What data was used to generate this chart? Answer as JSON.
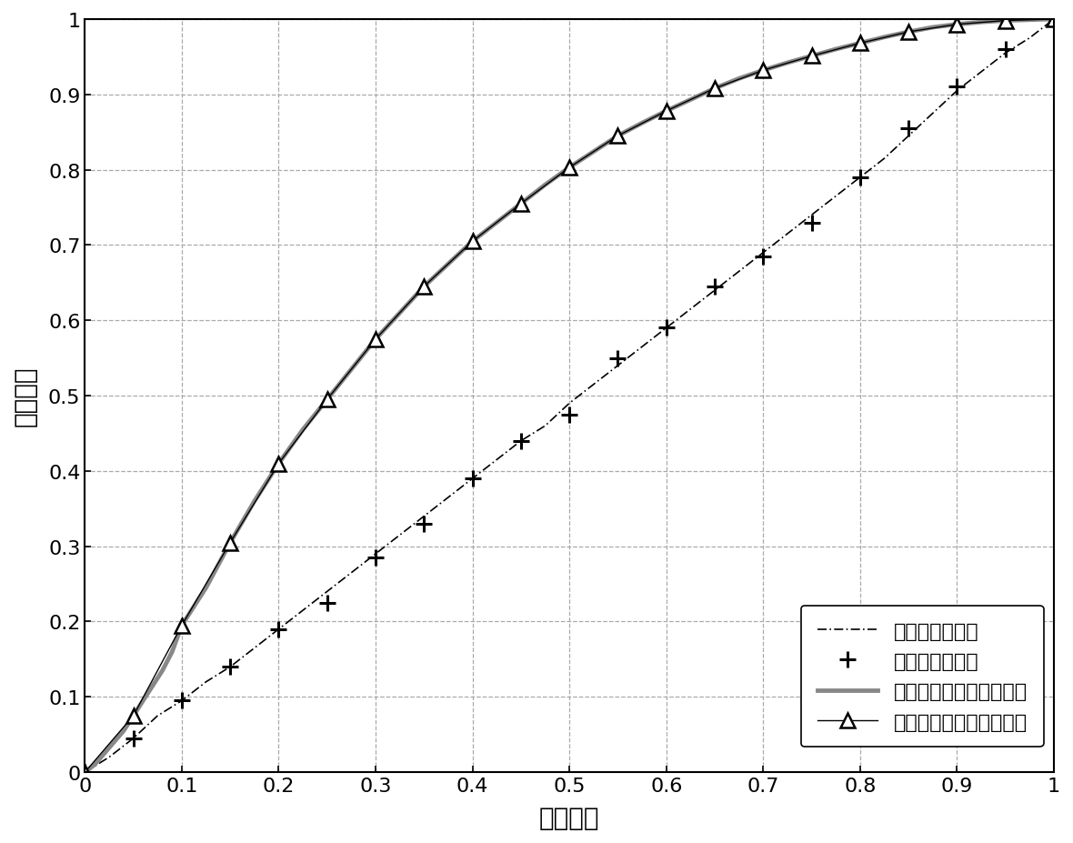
{
  "title": "",
  "xlabel": "虚警概率",
  "ylabel": "检测概率",
  "xlim": [
    0,
    1
  ],
  "ylim": [
    0,
    1
  ],
  "xticks": [
    0,
    0.1,
    0.2,
    0.3,
    0.4,
    0.5,
    0.6,
    0.7,
    0.8,
    0.9,
    1.0
  ],
  "yticks": [
    0,
    0.1,
    0.2,
    0.3,
    0.4,
    0.5,
    0.6,
    0.7,
    0.8,
    0.9,
    1.0
  ],
  "legend_labels": [
    "能量检测理论値",
    "能量检测仿真値",
    "最优随机共振检测理论値",
    "最优随机共振检测仿真値"
  ],
  "background_color": "white",
  "grid_color": "#aaaaaa",
  "energy_theory_pfa": [
    0.0,
    0.025,
    0.05,
    0.075,
    0.1,
    0.125,
    0.15,
    0.175,
    0.2,
    0.225,
    0.25,
    0.275,
    0.3,
    0.325,
    0.35,
    0.375,
    0.4,
    0.425,
    0.45,
    0.475,
    0.5,
    0.525,
    0.55,
    0.575,
    0.6,
    0.625,
    0.65,
    0.675,
    0.7,
    0.725,
    0.75,
    0.775,
    0.8,
    0.825,
    0.85,
    0.875,
    0.9,
    0.925,
    0.95,
    0.975,
    1.0
  ],
  "energy_theory_pd": [
    0.0,
    0.02,
    0.045,
    0.075,
    0.095,
    0.12,
    0.14,
    0.165,
    0.19,
    0.215,
    0.24,
    0.265,
    0.29,
    0.315,
    0.34,
    0.365,
    0.39,
    0.415,
    0.44,
    0.46,
    0.49,
    0.515,
    0.54,
    0.565,
    0.59,
    0.615,
    0.64,
    0.665,
    0.69,
    0.715,
    0.74,
    0.765,
    0.79,
    0.815,
    0.845,
    0.875,
    0.905,
    0.93,
    0.955,
    0.975,
    1.0
  ],
  "energy_sim_pfa": [
    0.0,
    0.05,
    0.1,
    0.15,
    0.2,
    0.25,
    0.3,
    0.35,
    0.4,
    0.45,
    0.5,
    0.55,
    0.6,
    0.65,
    0.7,
    0.75,
    0.8,
    0.85,
    0.9,
    0.95,
    1.0
  ],
  "energy_sim_pd": [
    0.0,
    0.045,
    0.095,
    0.14,
    0.19,
    0.225,
    0.285,
    0.33,
    0.39,
    0.44,
    0.475,
    0.55,
    0.59,
    0.645,
    0.685,
    0.73,
    0.79,
    0.855,
    0.91,
    0.96,
    1.0
  ],
  "sr_theory_pfa": [
    0.0,
    0.01,
    0.02,
    0.03,
    0.04,
    0.05,
    0.06,
    0.07,
    0.08,
    0.09,
    0.1,
    0.125,
    0.15,
    0.175,
    0.2,
    0.225,
    0.25,
    0.275,
    0.3,
    0.325,
    0.35,
    0.375,
    0.4,
    0.425,
    0.45,
    0.475,
    0.5,
    0.525,
    0.55,
    0.575,
    0.6,
    0.625,
    0.65,
    0.675,
    0.7,
    0.725,
    0.75,
    0.775,
    0.8,
    0.825,
    0.85,
    0.875,
    0.9,
    0.925,
    0.95,
    0.975,
    1.0
  ],
  "sr_theory_pd": [
    0.0,
    0.01,
    0.025,
    0.04,
    0.055,
    0.075,
    0.095,
    0.115,
    0.135,
    0.16,
    0.195,
    0.245,
    0.305,
    0.36,
    0.41,
    0.455,
    0.495,
    0.535,
    0.575,
    0.61,
    0.645,
    0.675,
    0.705,
    0.73,
    0.755,
    0.78,
    0.803,
    0.824,
    0.845,
    0.862,
    0.878,
    0.893,
    0.908,
    0.921,
    0.932,
    0.942,
    0.951,
    0.96,
    0.968,
    0.976,
    0.983,
    0.989,
    0.993,
    0.996,
    0.998,
    0.999,
    1.0
  ],
  "sr_sim_pfa": [
    0.0,
    0.05,
    0.1,
    0.15,
    0.2,
    0.25,
    0.3,
    0.35,
    0.4,
    0.45,
    0.5,
    0.55,
    0.6,
    0.65,
    0.7,
    0.75,
    0.8,
    0.85,
    0.9,
    0.95,
    1.0
  ],
  "sr_sim_pd": [
    0.0,
    0.075,
    0.195,
    0.305,
    0.41,
    0.495,
    0.575,
    0.645,
    0.705,
    0.755,
    0.803,
    0.845,
    0.878,
    0.908,
    0.932,
    0.951,
    0.968,
    0.983,
    0.993,
    0.998,
    1.0
  ]
}
